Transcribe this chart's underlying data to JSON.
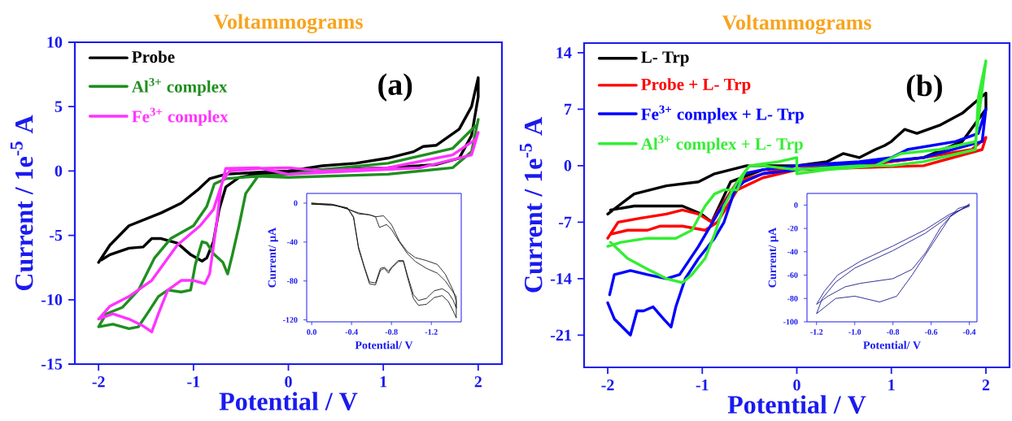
{
  "chart_data": [
    {
      "type": "line",
      "title": "Voltammograms",
      "xlabel": "Potential / V",
      "ylabel": "Current / 1e$^{-5}$ A",
      "annotations": [
        "(a)"
      ],
      "legend": "top left",
      "xlim": [
        -2.25,
        2.25
      ],
      "ylim": [
        -15,
        10
      ],
      "xticks": [
        -2,
        -1,
        0,
        1,
        2
      ],
      "yticks": [
        -15,
        -10,
        -5,
        0,
        5,
        10
      ],
      "series": [
        {
          "name": "Probe",
          "color": "#000000",
          "x": [
            -2,
            -1.88,
            -1.68,
            -1.34,
            -1.13,
            -0.96,
            -0.83,
            -0.66,
            -0.32,
            0,
            0.36,
            0.71,
            1.05,
            1.32,
            1.42,
            1.56,
            1.8,
            1.93,
            2,
            2,
            1.93,
            1.8,
            1.56,
            1.05,
            0.36,
            0,
            -0.32,
            -0.52,
            -0.66,
            -0.73,
            -0.79,
            -0.86,
            -0.91,
            -1.03,
            -1.17,
            -1.34,
            -1.44,
            -1.53,
            -1.68,
            -1.88,
            -1.97
          ],
          "values": [
            -7.1,
            -5.75,
            -4.25,
            -3.25,
            -2.5,
            -1.5,
            -0.6,
            -0.25,
            -0.1,
            0,
            0.4,
            0.6,
            1.0,
            1.5,
            1.9,
            2.0,
            3.25,
            5.0,
            7.25,
            5.75,
            2.75,
            1.0,
            0.5,
            0.25,
            0.1,
            -0.1,
            -0.25,
            -0.5,
            -1.25,
            -3,
            -5.5,
            -6.75,
            -7,
            -6.5,
            -5.6,
            -5.25,
            -5.25,
            -5.9,
            -6,
            -6.5,
            -6.9
          ]
        },
        {
          "name": "Al$^{3+}$ complex",
          "color": "#1f8f1f",
          "x": [
            2,
            1.93,
            1.73,
            1.05,
            0,
            -0.32,
            -0.45,
            -0.52,
            -0.59,
            -0.64,
            -0.69,
            -0.78,
            -0.86,
            -0.91,
            -0.98,
            -1.03,
            -1.13,
            -1.27,
            -1.37,
            -1.48,
            -1.58,
            -1.68,
            -1.85,
            -2,
            -1.92,
            -1.75,
            -1.58,
            -1.41,
            -1.24,
            -1.0,
            -0.86,
            -0.78,
            -0.66,
            -0.32,
            0,
            0.36,
            1.05,
            1.73,
            1.97
          ],
          "values": [
            4,
            1.5,
            0.25,
            -0.25,
            -0.5,
            -0.4,
            -1.75,
            -4.25,
            -6.5,
            -8,
            -7.1,
            -6.5,
            -5.6,
            -5.5,
            -7.25,
            -9.25,
            -9.4,
            -9.25,
            -9.75,
            -11,
            -12.1,
            -12.25,
            -11.9,
            -12.1,
            -11.1,
            -10.6,
            -9.25,
            -6.75,
            -5.25,
            -4.25,
            -2.75,
            -1.0,
            -0.6,
            -0.4,
            -0.25,
            0.1,
            0.6,
            1.75,
            3.5
          ]
        },
        {
          "name": "Fe$^{3+}$ complex",
          "color": "#ff33ff",
          "x": [
            2,
            1.93,
            1.39,
            0.71,
            0,
            -0.32,
            -0.66,
            -0.71,
            -0.76,
            -0.83,
            -0.88,
            -1.0,
            -1.13,
            -1.27,
            -1.37,
            -1.44,
            -1.54,
            -1.68,
            -1.85,
            -2,
            -1.88,
            -1.68,
            -1.44,
            -1.17,
            -0.93,
            -0.79,
            -0.69,
            -0.62,
            -0.32,
            0,
            0.36,
            1.05,
            1.73,
            1.98
          ],
          "values": [
            3,
            1.25,
            0.25,
            0,
            -0.25,
            0.25,
            0.2,
            -1.25,
            -4.25,
            -8,
            -8.75,
            -8.5,
            -8.5,
            -9.25,
            -11.1,
            -12.5,
            -12,
            -11.5,
            -11.1,
            -11.5,
            -10.5,
            -9.75,
            -8.5,
            -5.75,
            -4.25,
            -3,
            -0.75,
            0,
            0.2,
            0.25,
            0,
            0.25,
            1.25,
            2.5
          ]
        }
      ]
    },
    {
      "type": "line",
      "xlabel": "Potential/ V",
      "ylabel": "Current/ µA",
      "xlim": [
        0.05,
        -1.5
      ],
      "ylim": [
        -122,
        10
      ],
      "xticks": [
        {
          "value": 0,
          "label": "0.0"
        },
        {
          "value": -0.4,
          "label": "-0.4"
        },
        {
          "value": -0.8,
          "label": "-0.8"
        },
        {
          "value": -1.2,
          "label": "-1.2"
        }
      ],
      "yticks": [
        -120,
        -80,
        -40,
        0
      ],
      "series": [
        {
          "color": "#1a1a1a",
          "x": [
            0,
            -0.2,
            -0.36,
            -0.42,
            -0.47,
            -0.53,
            -0.58,
            -0.64,
            -0.69,
            -0.73,
            -0.77,
            -0.8,
            -0.87,
            -0.92,
            -0.96,
            -1.02,
            -1.07,
            -1.15,
            -1.23,
            -1.31,
            -1.37,
            -1.42,
            -1.45,
            -1.45,
            -1.42,
            -1.34,
            -1.26,
            -1.15,
            -1.04,
            -0.96,
            -0.88,
            -0.8,
            -0.72,
            -0.64,
            -0.58,
            -0.47,
            -0.36,
            -0.23,
            0
          ],
          "values": [
            0,
            -1,
            -5,
            -15,
            -47,
            -67,
            -83,
            -84,
            -69,
            -67,
            -72,
            -67,
            -60,
            -60,
            -76,
            -98,
            -105,
            -104,
            -97,
            -95,
            -101,
            -111,
            -118,
            -101,
            -90,
            -73,
            -63,
            -59,
            -56,
            -50,
            -39,
            -22,
            -13,
            -14,
            -12,
            -11,
            -6,
            -2,
            -1
          ]
        },
        {
          "color": "#1a1a1a",
          "x": [
            0,
            -0.2,
            -0.36,
            -0.42,
            -0.47,
            -0.53,
            -0.58,
            -0.64,
            -0.69,
            -0.73,
            -0.77,
            -0.8,
            -0.87,
            -0.92,
            -0.96,
            -1.02,
            -1.07,
            -1.15,
            -1.23,
            -1.31,
            -1.37,
            -1.42,
            -1.45,
            -1.45,
            -1.34,
            -1.26,
            -1.15,
            -1.04,
            -0.96,
            -0.88,
            -0.8,
            -0.75,
            -0.68,
            -0.64,
            -0.58,
            -0.47,
            -0.36,
            -0.23,
            0
          ],
          "values": [
            0,
            -2,
            -5,
            -14,
            -45,
            -66,
            -81,
            -82,
            -67,
            -66,
            -70,
            -66,
            -59,
            -59,
            -74,
            -94,
            -100,
            -98,
            -90,
            -88,
            -92,
            -100,
            -108,
            -96,
            -80,
            -72,
            -67,
            -60,
            -52,
            -40,
            -27,
            -22,
            -25,
            -14,
            -12,
            -10,
            -6,
            -2,
            -1
          ]
        }
      ]
    },
    {
      "type": "line",
      "title": "Voltammograms",
      "xlabel": "Potential / V",
      "ylabel": "Current / 1e$^{-5}$ A",
      "annotations": [
        "(b)"
      ],
      "legend": "top left",
      "xlim": [
        -2.25,
        2.25
      ],
      "ylim": [
        -25,
        15.2
      ],
      "xticks": [
        -2,
        -1,
        0,
        1,
        2
      ],
      "yticks": [
        -21,
        -14,
        -7,
        0,
        7,
        14
      ],
      "series": [
        {
          "name": "L- Trp",
          "color": "#000000",
          "x": [
            -2,
            -1.89,
            -1.72,
            -1.38,
            -1.04,
            -0.87,
            -0.7,
            -0.53,
            0,
            0.32,
            0.49,
            0.66,
            0.83,
            0.93,
            1.0,
            1.14,
            1.27,
            1.51,
            1.75,
            2,
            2,
            1.75,
            1.34,
            0.66,
            0,
            -0.36,
            -0.7,
            -0.9,
            -1.01,
            -1.21,
            -1.45,
            -1.72,
            -1.97
          ],
          "values": [
            -6,
            -5,
            -3.5,
            -2.5,
            -2,
            -1,
            -0.5,
            0,
            0,
            0.5,
            1.5,
            1,
            2,
            2.5,
            3,
            4.5,
            4,
            5,
            6.5,
            9,
            7,
            3,
            1,
            0,
            0,
            -0.5,
            -2,
            -7,
            -6,
            -5,
            -5,
            -5,
            -5.5
          ]
        },
        {
          "name": "Probe + L- Trp",
          "color": "#ff0000",
          "x": [
            -2,
            -1.89,
            -1.65,
            -1.38,
            -1.21,
            -1.04,
            -0.9,
            -0.77,
            -0.63,
            -0.36,
            0,
            0.66,
            1.34,
            1.85,
            2,
            1.96,
            1.34,
            0,
            -0.36,
            -0.63,
            -0.84,
            -0.97,
            -1.21,
            -1.45,
            -1.58,
            -1.79,
            -1.97
          ],
          "values": [
            -9,
            -7,
            -6.5,
            -6,
            -5.5,
            -6,
            -7,
            -4.5,
            -2,
            -1,
            0,
            0,
            1,
            2,
            3.5,
            2,
            0,
            -0.5,
            -1.5,
            -3,
            -7,
            -8,
            -7.5,
            -7.5,
            -8,
            -8,
            -8.5
          ]
        },
        {
          "name": "Fe$^{3+}$ complex + L- Trp",
          "color": "#0000ff",
          "x": [
            -2,
            -1.93,
            -1.76,
            -1.69,
            -1.62,
            -1.52,
            -1.41,
            -1.33,
            -1.28,
            -1.18,
            -1.04,
            -0.87,
            -0.77,
            -0.67,
            -0.56,
            -0.36,
            0,
            0.66,
            1.0,
            1.17,
            1.68,
            1.92,
            2,
            1.96,
            1.34,
            0,
            -0.36,
            -0.56,
            -0.7,
            -0.84,
            -1.04,
            -1.24,
            -1.38,
            -1.58,
            -1.76,
            -1.93,
            -1.98
          ],
          "values": [
            -17,
            -19,
            -21,
            -18,
            -18,
            -17.5,
            -19,
            -20,
            -17.5,
            -14,
            -11.5,
            -9,
            -7,
            -3.5,
            -1,
            -0.5,
            0,
            0.5,
            1,
            2,
            3,
            4,
            7,
            3,
            1,
            -0.5,
            -1,
            -2,
            -3.5,
            -6,
            -10,
            -13.5,
            -14,
            -13.5,
            -13,
            -13.5,
            -16
          ]
        },
        {
          "name": "Al$^{3+}$ complex + L- Trp",
          "color": "#33ee33",
          "x": [
            -2,
            -1.86,
            -1.58,
            -1.28,
            -1.11,
            -0.97,
            -0.87,
            -0.77,
            -0.63,
            -0.56,
            -0.5,
            -0.19,
            0,
            0,
            0.32,
            0.83,
            1.1,
            1.51,
            1.89,
            2,
            1.92,
            1.89,
            1.34,
            1.0,
            0.66,
            0,
            -0.36,
            -0.5,
            -0.63,
            -0.77,
            -0.87,
            -0.97,
            -1.11,
            -1.21,
            -1.38,
            -1.55,
            -1.79,
            -1.97
          ],
          "values": [
            -10,
            -9.5,
            -9,
            -9,
            -8,
            -5,
            -3.5,
            -3,
            -3,
            -1,
            0,
            0.5,
            1,
            -1,
            -0.5,
            0,
            1.5,
            2,
            3,
            13,
            8.5,
            2,
            0.5,
            0,
            0,
            -0.5,
            0,
            0,
            -2,
            -5,
            -8.5,
            -11.5,
            -13.5,
            -14.5,
            -14,
            -13,
            -11.5,
            -9.5
          ]
        }
      ]
    },
    {
      "type": "line",
      "xlabel": "Potential/ V",
      "ylabel": "Current/ µA",
      "xlim": [
        -1.25,
        -0.36
      ],
      "ylim": [
        -100,
        10
      ],
      "xticks": [
        {
          "value": -1.2,
          "label": "-1.2"
        },
        {
          "value": -1.0,
          "label": "-1.0"
        },
        {
          "value": -0.8,
          "label": "-0.8"
        },
        {
          "value": -0.6,
          "label": "-0.6"
        },
        {
          "value": -0.4,
          "label": "-0.4"
        }
      ],
      "yticks": [
        -100,
        -80,
        -60,
        -40,
        -20,
        0
      ],
      "series": [
        {
          "color": "#1c1c8c",
          "x": [
            -0.4,
            -0.46,
            -0.55,
            -0.63,
            -0.7,
            -0.8,
            -0.97,
            -1.05,
            -1.14,
            -1.2,
            -1.16,
            -1.09,
            -0.97,
            -0.8,
            -0.63,
            -0.5,
            -0.4
          ],
          "values": [
            0,
            -3,
            -19,
            -41,
            -55,
            -63,
            -67,
            -70,
            -78,
            -85,
            -74,
            -60,
            -48,
            -35,
            -21,
            -7.5,
            -1
          ]
        },
        {
          "color": "#1c1c8c",
          "x": [
            -0.4,
            -0.5,
            -0.6,
            -0.7,
            -0.78,
            -0.87,
            -1.0,
            -1.1,
            -1.2,
            -1.17,
            -1.1,
            -1.0,
            -0.8,
            -0.63,
            -0.5,
            -0.4
          ],
          "values": [
            1,
            -10,
            -35,
            -60,
            -78,
            -83,
            -78,
            -80,
            -93,
            -80,
            -66,
            -54,
            -39,
            -24,
            -9,
            0
          ]
        }
      ]
    }
  ]
}
